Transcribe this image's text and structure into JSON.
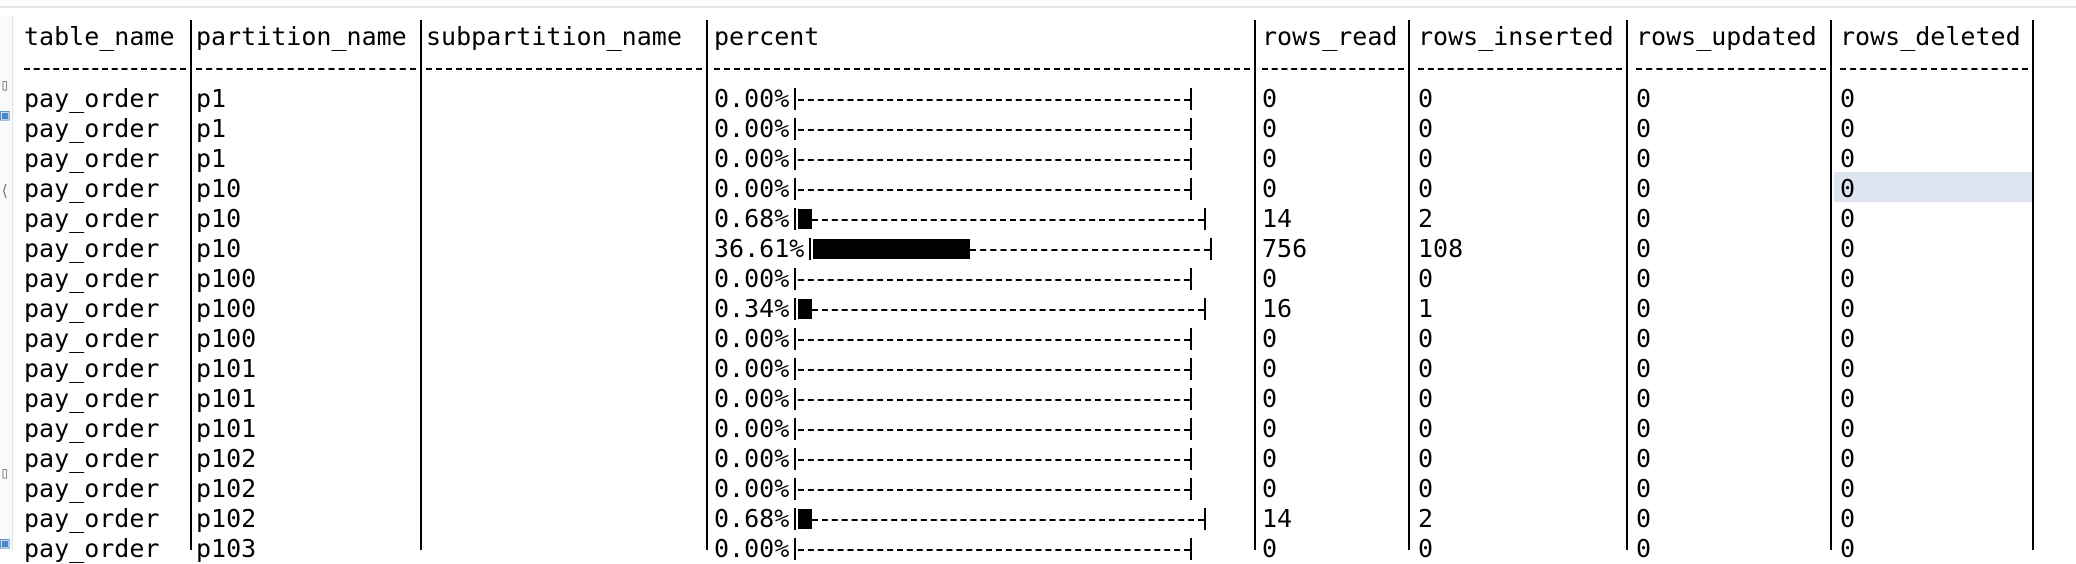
{
  "columns": [
    {
      "key": "table_name",
      "label": "table_name"
    },
    {
      "key": "partition_name",
      "label": "partition_name"
    },
    {
      "key": "subpartition_name",
      "label": "subpartition_name"
    },
    {
      "key": "percent",
      "label": "percent"
    },
    {
      "key": "rows_read",
      "label": "rows_read"
    },
    {
      "key": "rows_inserted",
      "label": "rows_inserted"
    },
    {
      "key": "rows_updated",
      "label": "rows_updated"
    },
    {
      "key": "rows_deleted",
      "label": "rows_deleted"
    }
  ],
  "rows": [
    {
      "table_name": "pay_order",
      "partition_name": "p1",
      "subpartition_name": "",
      "percent": "0.00%",
      "fill": 0.0,
      "rows_read": "0",
      "rows_inserted": "0",
      "rows_updated": "0",
      "rows_deleted": "0"
    },
    {
      "table_name": "pay_order",
      "partition_name": "p1",
      "subpartition_name": "",
      "percent": "0.00%",
      "fill": 0.0,
      "rows_read": "0",
      "rows_inserted": "0",
      "rows_updated": "0",
      "rows_deleted": "0"
    },
    {
      "table_name": "pay_order",
      "partition_name": "p1",
      "subpartition_name": "",
      "percent": "0.00%",
      "fill": 0.0,
      "rows_read": "0",
      "rows_inserted": "0",
      "rows_updated": "0",
      "rows_deleted": "0"
    },
    {
      "table_name": "pay_order",
      "partition_name": "p10",
      "subpartition_name": "",
      "percent": "0.00%",
      "fill": 0.0,
      "rows_read": "0",
      "rows_inserted": "0",
      "rows_updated": "0",
      "rows_deleted": "0",
      "selected_cell": "rows_deleted"
    },
    {
      "table_name": "pay_order",
      "partition_name": "p10",
      "subpartition_name": "",
      "percent": "0.68%",
      "fill": 0.0068,
      "rows_read": "14",
      "rows_inserted": "2",
      "rows_updated": "0",
      "rows_deleted": "0"
    },
    {
      "table_name": "pay_order",
      "partition_name": "p10",
      "subpartition_name": "",
      "percent": "36.61%",
      "fill": 0.3661,
      "rows_read": "756",
      "rows_inserted": "108",
      "rows_updated": "0",
      "rows_deleted": "0"
    },
    {
      "table_name": "pay_order",
      "partition_name": "p100",
      "subpartition_name": "",
      "percent": "0.00%",
      "fill": 0.0,
      "rows_read": "0",
      "rows_inserted": "0",
      "rows_updated": "0",
      "rows_deleted": "0"
    },
    {
      "table_name": "pay_order",
      "partition_name": "p100",
      "subpartition_name": "",
      "percent": "0.34%",
      "fill": 0.0034,
      "rows_read": "16",
      "rows_inserted": "1",
      "rows_updated": "0",
      "rows_deleted": "0"
    },
    {
      "table_name": "pay_order",
      "partition_name": "p100",
      "subpartition_name": "",
      "percent": "0.00%",
      "fill": 0.0,
      "rows_read": "0",
      "rows_inserted": "0",
      "rows_updated": "0",
      "rows_deleted": "0"
    },
    {
      "table_name": "pay_order",
      "partition_name": "p101",
      "subpartition_name": "",
      "percent": "0.00%",
      "fill": 0.0,
      "rows_read": "0",
      "rows_inserted": "0",
      "rows_updated": "0",
      "rows_deleted": "0"
    },
    {
      "table_name": "pay_order",
      "partition_name": "p101",
      "subpartition_name": "",
      "percent": "0.00%",
      "fill": 0.0,
      "rows_read": "0",
      "rows_inserted": "0",
      "rows_updated": "0",
      "rows_deleted": "0"
    },
    {
      "table_name": "pay_order",
      "partition_name": "p101",
      "subpartition_name": "",
      "percent": "0.00%",
      "fill": 0.0,
      "rows_read": "0",
      "rows_inserted": "0",
      "rows_updated": "0",
      "rows_deleted": "0"
    },
    {
      "table_name": "pay_order",
      "partition_name": "p102",
      "subpartition_name": "",
      "percent": "0.00%",
      "fill": 0.0,
      "rows_read": "0",
      "rows_inserted": "0",
      "rows_updated": "0",
      "rows_deleted": "0"
    },
    {
      "table_name": "pay_order",
      "partition_name": "p102",
      "subpartition_name": "",
      "percent": "0.00%",
      "fill": 0.0,
      "rows_read": "0",
      "rows_inserted": "0",
      "rows_updated": "0",
      "rows_deleted": "0"
    },
    {
      "table_name": "pay_order",
      "partition_name": "p102",
      "subpartition_name": "",
      "percent": "0.68%",
      "fill": 0.0068,
      "rows_read": "14",
      "rows_inserted": "2",
      "rows_updated": "0",
      "rows_deleted": "0"
    },
    {
      "table_name": "pay_order",
      "partition_name": "p103",
      "subpartition_name": "",
      "percent": "0.00%",
      "fill": 0.0,
      "rows_read": "0",
      "rows_inserted": "0",
      "rows_updated": "0",
      "rows_deleted": "0"
    }
  ],
  "colors": {
    "selection": "#dde4ef",
    "text": "#000000",
    "background": "#ffffff"
  },
  "sidebar_icons": [
    "panel-icon",
    "toggle-icon",
    "panel-icon"
  ]
}
